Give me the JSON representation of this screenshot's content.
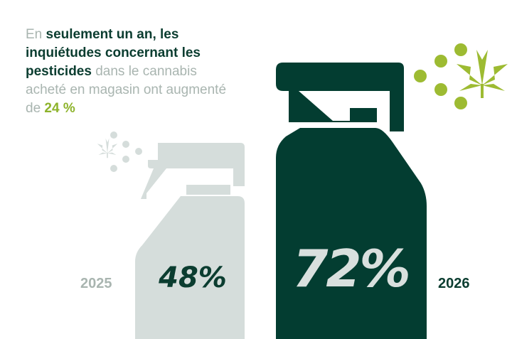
{
  "headline": {
    "t1": "En ",
    "t2": "seulement un an, les inquiétudes concernant les pesticides",
    "t3": " dans le cannabis acheté en magasin ont augmenté de ",
    "t4": "24 %"
  },
  "colors": {
    "light_bottle": "#d5dddb",
    "dark_bottle": "#033d31",
    "accent_green": "#9dbb32",
    "light_text": "#a9b5b0",
    "dark_text": "#0b3d30",
    "pct_light": "#d9e0de"
  },
  "icons": [
    "spray-bottle-icon",
    "cannabis-leaf-icon",
    "spray-droplets-icon"
  ],
  "chart_data": {
    "type": "bar",
    "categories": [
      "2025",
      "2026"
    ],
    "values": [
      48,
      72
    ],
    "value_labels": [
      "48%",
      "72%"
    ],
    "unit": "%",
    "title": "",
    "xlabel": "",
    "ylabel": "",
    "ylim": [
      0,
      100
    ]
  }
}
